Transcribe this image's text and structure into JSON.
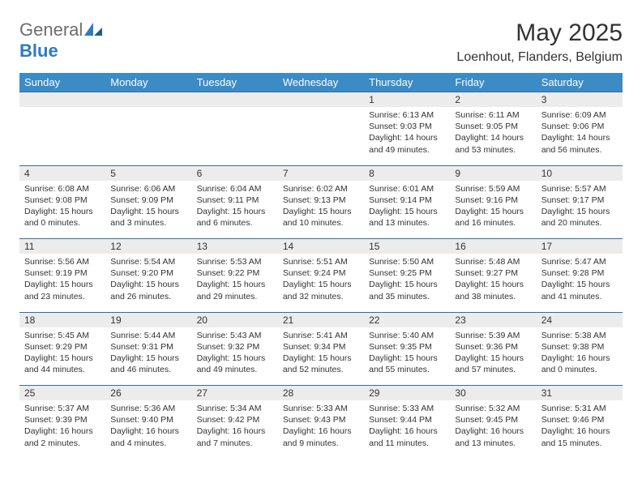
{
  "logo": {
    "general": "General",
    "blue": "Blue"
  },
  "title": "May 2025",
  "location": "Loenhout, Flanders, Belgium",
  "header_bg": "#3b8bc7",
  "daynum_bg": "#ececec",
  "border_color": "#2f6fa5",
  "days": [
    "Sunday",
    "Monday",
    "Tuesday",
    "Wednesday",
    "Thursday",
    "Friday",
    "Saturday"
  ],
  "weeks": [
    [
      null,
      null,
      null,
      null,
      {
        "n": "1",
        "sr": "6:13 AM",
        "ss": "9:03 PM",
        "dl": "14 hours and 49 minutes."
      },
      {
        "n": "2",
        "sr": "6:11 AM",
        "ss": "9:05 PM",
        "dl": "14 hours and 53 minutes."
      },
      {
        "n": "3",
        "sr": "6:09 AM",
        "ss": "9:06 PM",
        "dl": "14 hours and 56 minutes."
      }
    ],
    [
      {
        "n": "4",
        "sr": "6:08 AM",
        "ss": "9:08 PM",
        "dl": "15 hours and 0 minutes."
      },
      {
        "n": "5",
        "sr": "6:06 AM",
        "ss": "9:09 PM",
        "dl": "15 hours and 3 minutes."
      },
      {
        "n": "6",
        "sr": "6:04 AM",
        "ss": "9:11 PM",
        "dl": "15 hours and 6 minutes."
      },
      {
        "n": "7",
        "sr": "6:02 AM",
        "ss": "9:13 PM",
        "dl": "15 hours and 10 minutes."
      },
      {
        "n": "8",
        "sr": "6:01 AM",
        "ss": "9:14 PM",
        "dl": "15 hours and 13 minutes."
      },
      {
        "n": "9",
        "sr": "5:59 AM",
        "ss": "9:16 PM",
        "dl": "15 hours and 16 minutes."
      },
      {
        "n": "10",
        "sr": "5:57 AM",
        "ss": "9:17 PM",
        "dl": "15 hours and 20 minutes."
      }
    ],
    [
      {
        "n": "11",
        "sr": "5:56 AM",
        "ss": "9:19 PM",
        "dl": "15 hours and 23 minutes."
      },
      {
        "n": "12",
        "sr": "5:54 AM",
        "ss": "9:20 PM",
        "dl": "15 hours and 26 minutes."
      },
      {
        "n": "13",
        "sr": "5:53 AM",
        "ss": "9:22 PM",
        "dl": "15 hours and 29 minutes."
      },
      {
        "n": "14",
        "sr": "5:51 AM",
        "ss": "9:24 PM",
        "dl": "15 hours and 32 minutes."
      },
      {
        "n": "15",
        "sr": "5:50 AM",
        "ss": "9:25 PM",
        "dl": "15 hours and 35 minutes."
      },
      {
        "n": "16",
        "sr": "5:48 AM",
        "ss": "9:27 PM",
        "dl": "15 hours and 38 minutes."
      },
      {
        "n": "17",
        "sr": "5:47 AM",
        "ss": "9:28 PM",
        "dl": "15 hours and 41 minutes."
      }
    ],
    [
      {
        "n": "18",
        "sr": "5:45 AM",
        "ss": "9:29 PM",
        "dl": "15 hours and 44 minutes."
      },
      {
        "n": "19",
        "sr": "5:44 AM",
        "ss": "9:31 PM",
        "dl": "15 hours and 46 minutes."
      },
      {
        "n": "20",
        "sr": "5:43 AM",
        "ss": "9:32 PM",
        "dl": "15 hours and 49 minutes."
      },
      {
        "n": "21",
        "sr": "5:41 AM",
        "ss": "9:34 PM",
        "dl": "15 hours and 52 minutes."
      },
      {
        "n": "22",
        "sr": "5:40 AM",
        "ss": "9:35 PM",
        "dl": "15 hours and 55 minutes."
      },
      {
        "n": "23",
        "sr": "5:39 AM",
        "ss": "9:36 PM",
        "dl": "15 hours and 57 minutes."
      },
      {
        "n": "24",
        "sr": "5:38 AM",
        "ss": "9:38 PM",
        "dl": "16 hours and 0 minutes."
      }
    ],
    [
      {
        "n": "25",
        "sr": "5:37 AM",
        "ss": "9:39 PM",
        "dl": "16 hours and 2 minutes."
      },
      {
        "n": "26",
        "sr": "5:36 AM",
        "ss": "9:40 PM",
        "dl": "16 hours and 4 minutes."
      },
      {
        "n": "27",
        "sr": "5:34 AM",
        "ss": "9:42 PM",
        "dl": "16 hours and 7 minutes."
      },
      {
        "n": "28",
        "sr": "5:33 AM",
        "ss": "9:43 PM",
        "dl": "16 hours and 9 minutes."
      },
      {
        "n": "29",
        "sr": "5:33 AM",
        "ss": "9:44 PM",
        "dl": "16 hours and 11 minutes."
      },
      {
        "n": "30",
        "sr": "5:32 AM",
        "ss": "9:45 PM",
        "dl": "16 hours and 13 minutes."
      },
      {
        "n": "31",
        "sr": "5:31 AM",
        "ss": "9:46 PM",
        "dl": "16 hours and 15 minutes."
      }
    ]
  ],
  "labels": {
    "sunrise": "Sunrise:",
    "sunset": "Sunset:",
    "daylight": "Daylight:"
  }
}
